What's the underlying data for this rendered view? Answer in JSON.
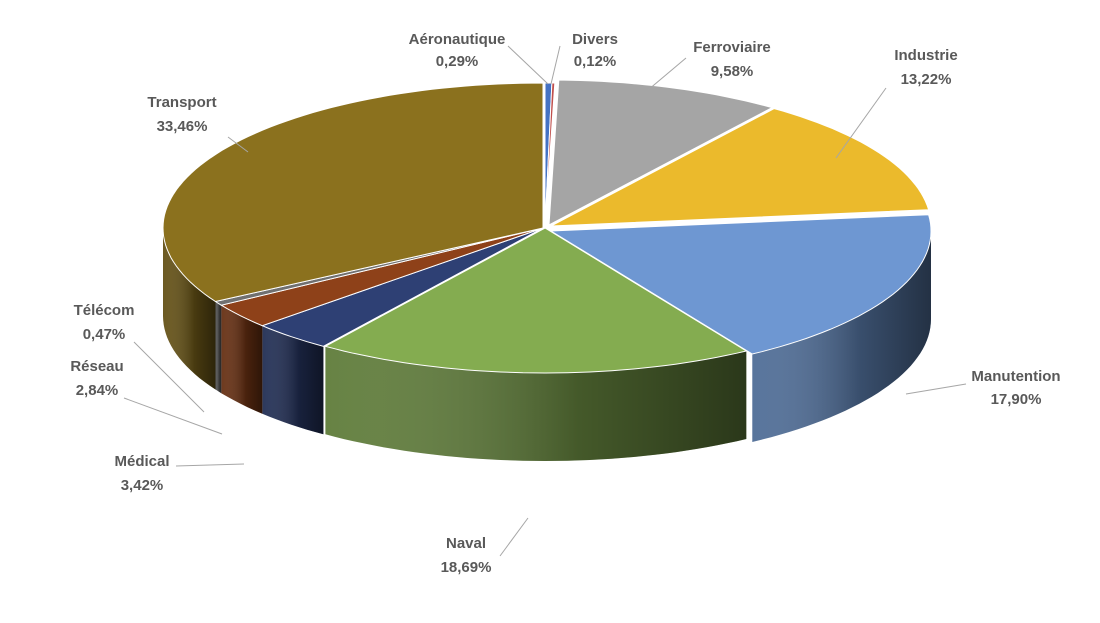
{
  "chart_data": {
    "type": "pie",
    "style": "3d-exploded-perspective",
    "title": "",
    "categories": [
      "Aéronautique",
      "Divers",
      "Ferroviaire",
      "Industrie",
      "Manutention",
      "Naval",
      "Médical",
      "Réseau",
      "Télécom",
      "Transport"
    ],
    "values": [
      0.29,
      0.12,
      9.58,
      13.22,
      17.9,
      18.69,
      3.42,
      2.84,
      0.47,
      33.46
    ],
    "value_labels": [
      "0,29%",
      "0,12%",
      "9,58%",
      "13,22%",
      "17,90%",
      "18,69%",
      "3,42%",
      "2,84%",
      "0,47%",
      "33,46%"
    ],
    "unit": "%",
    "colors": [
      "#4472C4",
      "#C0504D",
      "#A5A5A5",
      "#EBBA2C",
      "#6E97D2",
      "#84AC50",
      "#2E4074",
      "#8E4119",
      "#707070",
      "#8B711E"
    ],
    "legend": "none",
    "data_labels": "outside-with-leader-lines"
  }
}
